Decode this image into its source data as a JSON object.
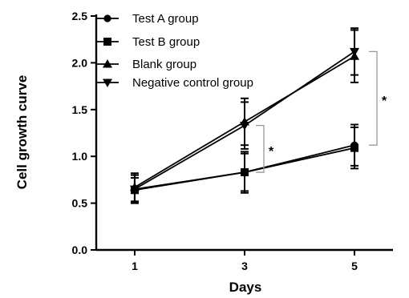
{
  "chart_data": {
    "type": "line",
    "xlabel": "Days",
    "ylabel": "Cell growth curve",
    "x": [
      1,
      3,
      5
    ],
    "xticks": [
      "1",
      "3",
      "5"
    ],
    "ylim": [
      0.0,
      2.5
    ],
    "yticks": [
      "0.0",
      "0.5",
      "1.0",
      "1.5",
      "2.0",
      "2.5"
    ],
    "grid": false,
    "legend_position": "top-left",
    "series": [
      {
        "name": "Test A group",
        "marker": "circle",
        "values": [
          0.65,
          0.83,
          1.12
        ],
        "errors": [
          0.15,
          0.22,
          0.22
        ]
      },
      {
        "name": "Test B group",
        "marker": "square",
        "values": [
          0.64,
          0.83,
          1.09
        ],
        "errors": [
          0.13,
          0.2,
          0.22
        ]
      },
      {
        "name": "Blank group",
        "marker": "triangle-up",
        "values": [
          0.67,
          1.37,
          2.07
        ],
        "errors": [
          0.15,
          0.25,
          0.28
        ]
      },
      {
        "name": "Negative control group",
        "marker": "triangle-down",
        "values": [
          0.65,
          1.33,
          2.12
        ],
        "errors": [
          0.15,
          0.25,
          0.25
        ]
      }
    ],
    "annotations": [
      {
        "text": "*",
        "x": 3,
        "between": [
          0.83,
          1.33
        ]
      },
      {
        "text": "*",
        "x": 5,
        "between": [
          1.12,
          2.12
        ]
      }
    ]
  }
}
